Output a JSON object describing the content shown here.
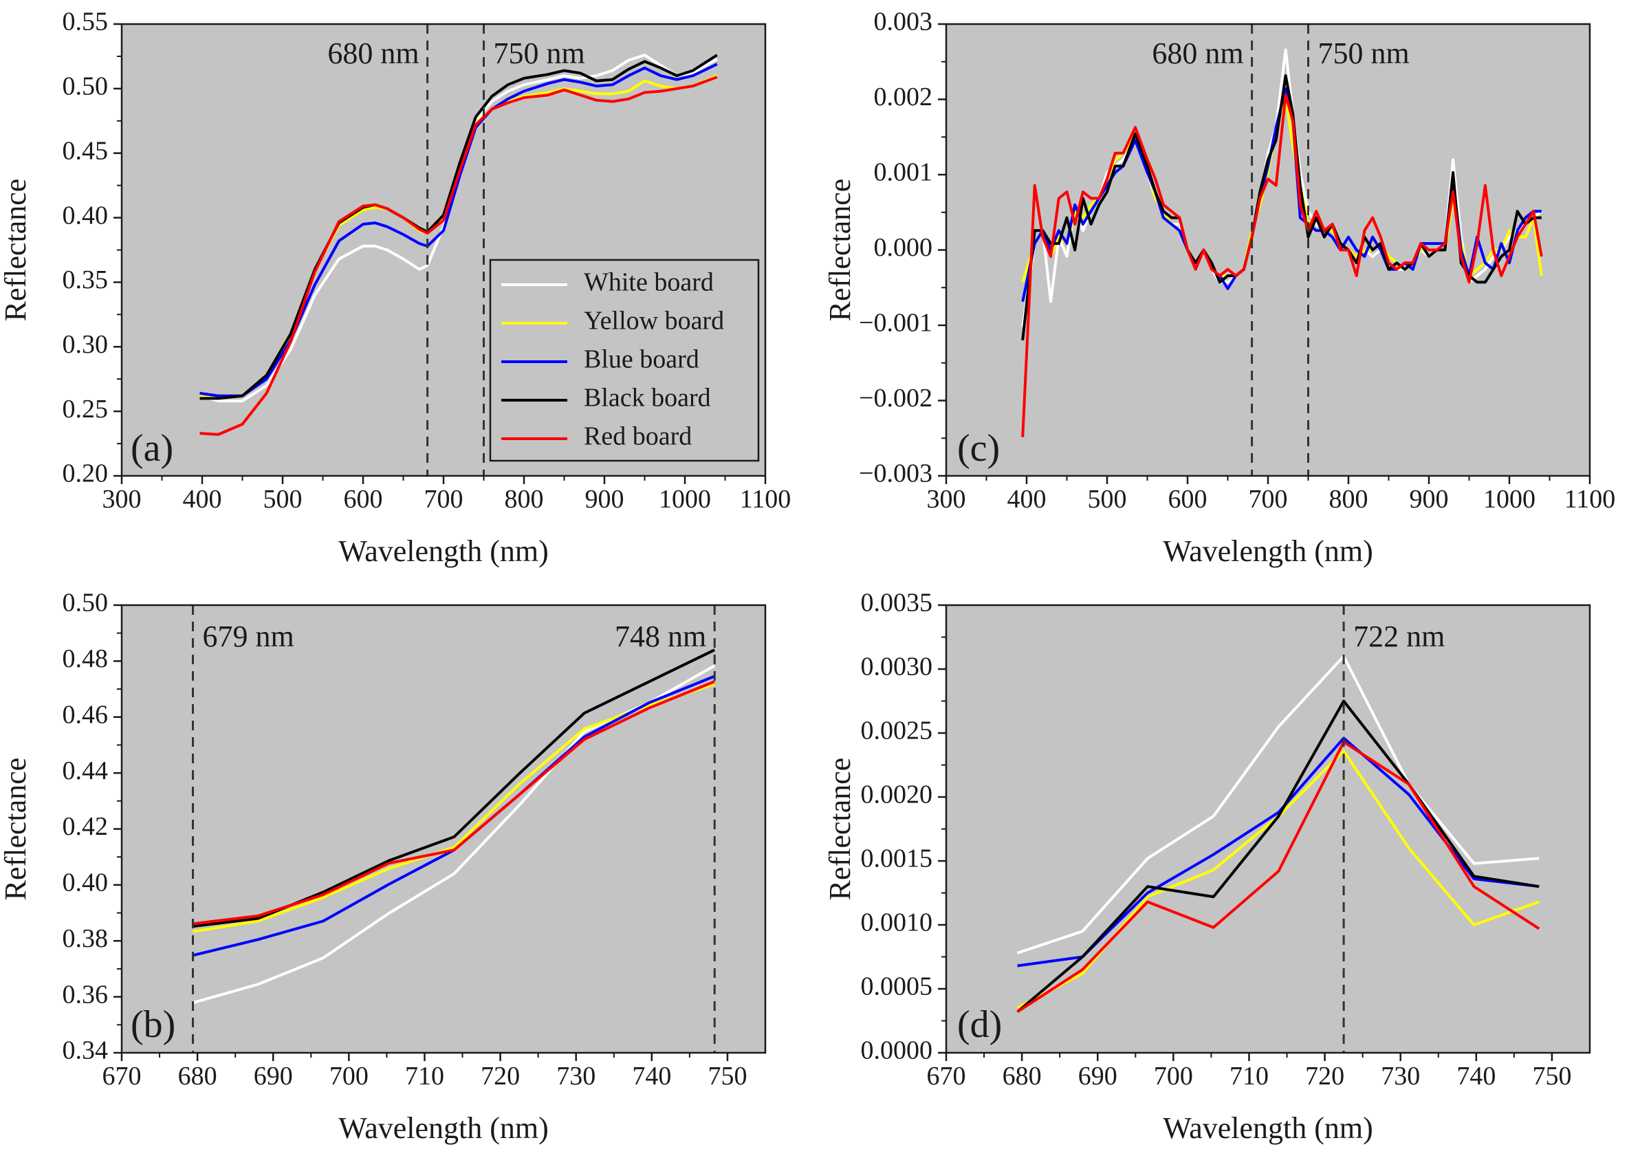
{
  "colors": {
    "plot_bg": "#c4c4c4",
    "axis": "#1a1a1a",
    "white_board": "#ffffff",
    "yellow_board": "#ffff00",
    "blue_board": "#0000ff",
    "black_board": "#000000",
    "red_board": "#ff0000"
  },
  "legend": {
    "entries": [
      "White board",
      "Yellow board",
      "Blue board",
      "Black board",
      "Red board"
    ]
  },
  "chart_data": [
    {
      "panel": "(a)",
      "type": "line",
      "xlabel": "Wavelength (nm)",
      "ylabel": "Reflectance",
      "xlim": [
        300,
        1100
      ],
      "ylim": [
        0.2,
        0.55
      ],
      "xticks": [
        300,
        400,
        500,
        600,
        700,
        800,
        900,
        1000,
        1100
      ],
      "yticks": [
        "0.20",
        "0.25",
        "0.30",
        "0.35",
        "0.40",
        "0.45",
        "0.50",
        "0.55"
      ],
      "vlines": [
        {
          "x": 680,
          "label": "680 nm"
        },
        {
          "x": 750,
          "label": "750 nm"
        }
      ],
      "legend_position": "lower-right",
      "x": [
        397,
        420,
        450,
        480,
        510,
        540,
        570,
        600,
        615,
        630,
        650,
        670,
        680,
        700,
        720,
        740,
        760,
        780,
        800,
        830,
        850,
        870,
        890,
        910,
        930,
        950,
        970,
        990,
        1010,
        1040
      ],
      "series": [
        {
          "name": "White board",
          "color": "white_board",
          "values": [
            0.262,
            0.258,
            0.258,
            0.27,
            0.298,
            0.34,
            0.368,
            0.378,
            0.378,
            0.375,
            0.368,
            0.36,
            0.363,
            0.393,
            0.44,
            0.475,
            0.49,
            0.498,
            0.503,
            0.507,
            0.51,
            0.508,
            0.51,
            0.514,
            0.522,
            0.526,
            0.518,
            0.51,
            0.512,
            0.523
          ]
        },
        {
          "name": "Yellow board",
          "color": "yellow_board",
          "values": [
            0.262,
            0.262,
            0.262,
            0.278,
            0.31,
            0.36,
            0.394,
            0.406,
            0.408,
            0.407,
            0.4,
            0.39,
            0.388,
            0.4,
            0.44,
            0.473,
            0.484,
            0.49,
            0.494,
            0.497,
            0.5,
            0.498,
            0.496,
            0.496,
            0.498,
            0.506,
            0.502,
            0.5,
            0.502,
            0.51
          ]
        },
        {
          "name": "Blue board",
          "color": "blue_board",
          "values": [
            0.264,
            0.262,
            0.262,
            0.275,
            0.305,
            0.348,
            0.382,
            0.395,
            0.396,
            0.393,
            0.387,
            0.38,
            0.378,
            0.39,
            0.432,
            0.47,
            0.484,
            0.492,
            0.498,
            0.504,
            0.507,
            0.505,
            0.502,
            0.503,
            0.51,
            0.516,
            0.51,
            0.507,
            0.51,
            0.519
          ]
        },
        {
          "name": "Black board",
          "color": "black_board",
          "values": [
            0.26,
            0.26,
            0.262,
            0.278,
            0.31,
            0.36,
            0.396,
            0.408,
            0.41,
            0.407,
            0.4,
            0.392,
            0.389,
            0.402,
            0.442,
            0.478,
            0.494,
            0.503,
            0.508,
            0.511,
            0.514,
            0.512,
            0.506,
            0.507,
            0.515,
            0.521,
            0.516,
            0.51,
            0.514,
            0.526
          ]
        },
        {
          "name": "Red board",
          "color": "red_board",
          "values": [
            0.233,
            0.232,
            0.24,
            0.264,
            0.304,
            0.358,
            0.397,
            0.409,
            0.41,
            0.407,
            0.4,
            0.391,
            0.388,
            0.398,
            0.436,
            0.472,
            0.484,
            0.489,
            0.493,
            0.495,
            0.499,
            0.495,
            0.491,
            0.49,
            0.492,
            0.497,
            0.498,
            0.5,
            0.502,
            0.509
          ]
        }
      ]
    },
    {
      "panel": "(b)",
      "type": "line",
      "xlabel": "Wavelength (nm)",
      "ylabel": "Reflectance",
      "xlim": [
        670,
        755
      ],
      "ylim": [
        0.34,
        0.51
      ],
      "xticks": [
        670,
        680,
        690,
        700,
        710,
        720,
        730,
        740,
        750
      ],
      "yticks": [
        "0.34",
        "0.36",
        "0.38",
        "0.40",
        "0.42",
        "0.44",
        "0.46",
        "0.48",
        "0.50"
      ],
      "vlines": [
        {
          "x": 679.4,
          "label": "679 nm"
        },
        {
          "x": 748.3,
          "label": "748 nm"
        }
      ],
      "x": [
        679.4,
        688,
        696.6,
        705.3,
        713.9,
        722.5,
        731.1,
        739.7,
        748.3
      ],
      "series": [
        {
          "name": "White board",
          "color": "white_board",
          "values": [
            0.359,
            0.366,
            0.376,
            0.393,
            0.408,
            0.434,
            0.462,
            0.473,
            0.487
          ]
        },
        {
          "name": "Yellow board",
          "color": "yellow_board",
          "values": [
            0.386,
            0.39,
            0.399,
            0.41,
            0.418,
            0.442,
            0.463,
            0.472,
            0.48
          ]
        },
        {
          "name": "Blue board",
          "color": "blue_board",
          "values": [
            0.377,
            0.383,
            0.39,
            0.404,
            0.417,
            0.438,
            0.46,
            0.473,
            0.483
          ]
        },
        {
          "name": "Black board",
          "color": "black_board",
          "values": [
            0.388,
            0.391,
            0.401,
            0.413,
            0.422,
            0.446,
            0.469,
            0.481,
            0.493
          ]
        },
        {
          "name": "Red board",
          "color": "red_board",
          "values": [
            0.389,
            0.392,
            0.4,
            0.412,
            0.417,
            0.438,
            0.459,
            0.471,
            0.481
          ]
        }
      ]
    },
    {
      "panel": "(c)",
      "type": "line",
      "xlabel": "Wavelength (nm)",
      "ylabel": "Reflectance",
      "xlim": [
        300,
        1100
      ],
      "ylim": [
        -0.0035,
        0.0035
      ],
      "xticks": [
        300,
        400,
        500,
        600,
        700,
        800,
        900,
        1000,
        1100
      ],
      "yticks": [
        "−0.003",
        "−0.002",
        "−0.001",
        "0.000",
        "0.001",
        "0.002",
        "0.003"
      ],
      "vlines": [
        {
          "x": 680,
          "label": "680 nm"
        },
        {
          "x": 750,
          "label": "750 nm"
        }
      ],
      "x": [
        395,
        410,
        420,
        430,
        440,
        450,
        460,
        470,
        480,
        490,
        500,
        510,
        520,
        535,
        550,
        560,
        570,
        580,
        590,
        600,
        610,
        620,
        630,
        640,
        650,
        660,
        670,
        680,
        690,
        700,
        710,
        722,
        731,
        740,
        750,
        760,
        770,
        780,
        790,
        800,
        810,
        820,
        830,
        840,
        850,
        860,
        870,
        880,
        890,
        900,
        910,
        920,
        930,
        940,
        950,
        960,
        970,
        980,
        990,
        1000,
        1010,
        1020,
        1030,
        1040
      ],
      "series": [
        {
          "name": "White board",
          "color": "white_board",
          "values": [
            -0.0012,
            0.0001,
            0.0003,
            -0.0008,
            0.0002,
            -0.0001,
            0.0007,
            0.0003,
            0.0006,
            0.0008,
            0.0012,
            0.0013,
            0.0014,
            0.0017,
            0.0012,
            0.0008,
            0.0006,
            0.0004,
            0.0004,
            0.0,
            -0.0002,
            0.0,
            -0.0003,
            -0.0005,
            -0.0005,
            -0.0004,
            -0.0003,
            0.0002,
            0.0008,
            0.0015,
            0.0019,
            0.0031,
            0.0021,
            0.0012,
            0.0006,
            0.0004,
            0.0003,
            0.0002,
            0.0001,
            0.0,
            -0.0001,
            0.0,
            -0.0001,
            0.0,
            -0.0002,
            -0.0003,
            -0.0003,
            -0.0002,
            0.0,
            -0.0001,
            0.0,
            0.0001,
            0.0014,
            0.0002,
            -0.0005,
            -0.0004,
            -0.0003,
            -0.0001,
            0.0,
            0.0002,
            0.0003,
            0.0004,
            0.0005,
            0.0006
          ]
        },
        {
          "name": "Yellow board",
          "color": "yellow_board",
          "values": [
            -0.0005,
            0.0001,
            0.0003,
            -0.0001,
            0.0002,
            0.0001,
            0.0006,
            0.0005,
            0.0007,
            0.0008,
            0.0011,
            0.0014,
            0.0015,
            0.0018,
            0.0013,
            0.0008,
            0.0006,
            0.0004,
            0.0003,
            0.0,
            -0.0002,
            0.0,
            -0.0003,
            -0.0004,
            -0.0004,
            -0.0004,
            -0.0003,
            0.0003,
            0.0007,
            0.0012,
            0.0019,
            0.0024,
            0.0016,
            0.001,
            0.0004,
            0.0005,
            0.0003,
            0.0003,
            0.0001,
            0.0,
            -0.0001,
            0.0,
            0.0,
            0.0001,
            -0.0001,
            -0.0002,
            -0.0003,
            -0.0002,
            0.0,
            0.0,
            0.0,
            0.0,
            0.0008,
            0.0001,
            -0.0004,
            -0.0003,
            -0.0002,
            0.0,
            0.0,
            0.0003,
            0.0002,
            0.0002,
            0.0005,
            -0.0004
          ]
        },
        {
          "name": "Blue board",
          "color": "blue_board",
          "values": [
            -0.0008,
            0.0001,
            0.0003,
            0.0,
            0.0003,
            0.0001,
            0.0007,
            0.0004,
            0.0006,
            0.0008,
            0.001,
            0.0012,
            0.0013,
            0.0017,
            0.0012,
            0.0009,
            0.0005,
            0.0004,
            0.0003,
            0.0,
            -0.0002,
            0.0,
            -0.0003,
            -0.0004,
            -0.0006,
            -0.0004,
            -0.0003,
            0.0002,
            0.0008,
            0.0013,
            0.0019,
            0.0025,
            0.002,
            0.0005,
            0.0004,
            0.0003,
            0.0003,
            0.0002,
            0.0,
            0.0002,
            0.0,
            -0.0001,
            0.0002,
            0.0,
            -0.0003,
            -0.0003,
            -0.0002,
            -0.0003,
            0.0001,
            0.0001,
            0.0001,
            0.0001,
            0.0011,
            0.0,
            -0.0004,
            0.0002,
            -0.0002,
            -0.0003,
            0.0001,
            -0.0002,
            0.0003,
            0.0005,
            0.0006,
            0.0006
          ]
        },
        {
          "name": "Black board",
          "color": "black_board",
          "values": [
            -0.0014,
            0.0003,
            0.0003,
            0.0001,
            0.0001,
            0.0005,
            0.0,
            0.0008,
            0.0004,
            0.0007,
            0.0009,
            0.0013,
            0.0013,
            0.0018,
            0.0013,
            0.0009,
            0.0006,
            0.0005,
            0.0005,
            0.0,
            -0.0002,
            0.0,
            -0.0002,
            -0.0005,
            -0.0004,
            -0.0004,
            -0.0003,
            0.0002,
            0.0009,
            0.0014,
            0.0017,
            0.0027,
            0.0021,
            0.001,
            0.0002,
            0.0005,
            0.0002,
            0.0004,
            0.0001,
            0.0,
            -0.0002,
            0.0002,
            0.0,
            0.0001,
            -0.0003,
            -0.0002,
            -0.0003,
            -0.0002,
            0.0001,
            -0.0001,
            0.0,
            0.0,
            0.0012,
            -0.0002,
            -0.0004,
            -0.0005,
            -0.0005,
            -0.0003,
            -0.0001,
            0.0,
            0.0006,
            0.0004,
            0.0005,
            0.0005
          ]
        },
        {
          "name": "Red board",
          "color": "red_board",
          "values": [
            -0.0029,
            0.001,
            0.0002,
            -0.0001,
            0.0008,
            0.0009,
            0.0004,
            0.0009,
            0.0008,
            0.0008,
            0.0011,
            0.0015,
            0.0015,
            0.0019,
            0.0014,
            0.0011,
            0.0007,
            0.0006,
            0.0005,
            0.0,
            -0.0003,
            0.0,
            -0.0003,
            -0.0004,
            -0.0003,
            -0.0004,
            -0.0003,
            0.0002,
            0.0008,
            0.0011,
            0.001,
            0.0024,
            0.002,
            0.0007,
            0.0003,
            0.0006,
            0.0003,
            0.0004,
            0.0,
            0.0,
            -0.0004,
            0.0003,
            0.0005,
            0.0002,
            -0.0002,
            -0.0003,
            -0.0002,
            -0.0002,
            0.0001,
            0.0,
            0.0,
            0.0001,
            0.0009,
            -0.0001,
            -0.0005,
            0.0001,
            0.001,
            0.0,
            -0.0004,
            -0.0001,
            0.0002,
            0.0004,
            0.0006,
            -0.0001
          ]
        }
      ]
    },
    {
      "panel": "(d)",
      "type": "line",
      "xlabel": "Wavelength (nm)",
      "ylabel": "Reflectance",
      "xlim": [
        670,
        755
      ],
      "ylim": [
        0.0,
        0.0035
      ],
      "xticks": [
        670,
        680,
        690,
        700,
        710,
        720,
        730,
        740,
        750
      ],
      "yticks": [
        "0.0000",
        "0.0005",
        "0.0010",
        "0.0015",
        "0.0020",
        "0.0025",
        "0.0030",
        "0.0035"
      ],
      "vlines": [
        {
          "x": 722.5,
          "label": "722 nm"
        }
      ],
      "x": [
        679.4,
        688,
        696.6,
        705.3,
        713.9,
        722.5,
        731.1,
        739.7,
        748.3
      ],
      "series": [
        {
          "name": "White board",
          "color": "white_board",
          "values": [
            0.00078,
            0.00095,
            0.00152,
            0.00185,
            0.00255,
            0.0031,
            0.0021,
            0.00148,
            0.00152
          ]
        },
        {
          "name": "Yellow board",
          "color": "yellow_board",
          "values": [
            0.00035,
            0.00062,
            0.00122,
            0.00143,
            0.00185,
            0.00236,
            0.0016,
            0.001,
            0.00118
          ]
        },
        {
          "name": "Blue board",
          "color": "blue_board",
          "values": [
            0.00068,
            0.00075,
            0.00125,
            0.00155,
            0.00188,
            0.00246,
            0.00202,
            0.00136,
            0.0013
          ]
        },
        {
          "name": "Black board",
          "color": "black_board",
          "values": [
            0.00032,
            0.00075,
            0.0013,
            0.00122,
            0.00185,
            0.00275,
            0.0021,
            0.00138,
            0.0013
          ]
        },
        {
          "name": "Red board",
          "color": "red_board",
          "values": [
            0.00032,
            0.00065,
            0.00118,
            0.00098,
            0.00142,
            0.00243,
            0.0021,
            0.0013,
            0.00097
          ]
        }
      ]
    }
  ]
}
